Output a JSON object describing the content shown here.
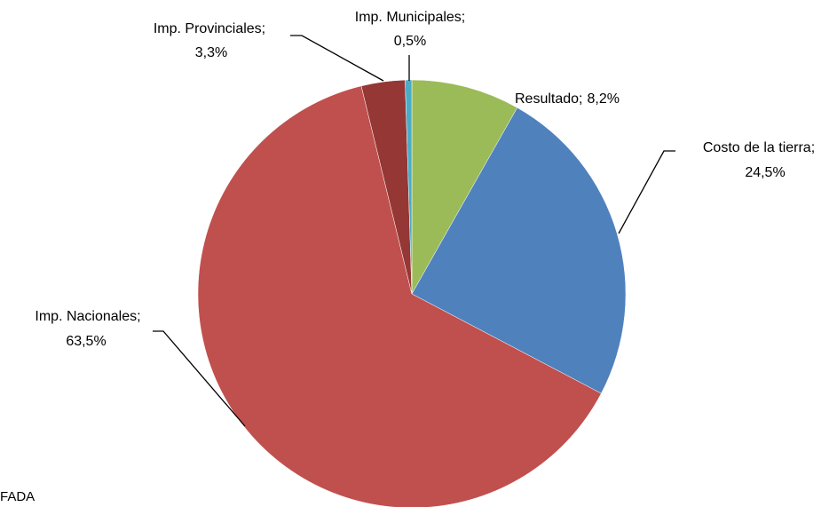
{
  "chart_data": {
    "type": "pie",
    "categories": [
      "Resultado;",
      "Costo de la tierra;",
      "Imp. Nacionales;",
      "Imp. Provinciales;",
      "Imp. Municipales;"
    ],
    "values": [
      8.2,
      24.5,
      63.5,
      3.3,
      0.5
    ],
    "value_labels": [
      "8,2%",
      "24,5%",
      "63,5%",
      "3,3%",
      "0,5%"
    ],
    "colors": [
      "#9bbb59",
      "#4f81bd",
      "#c0504d",
      "#953735",
      "#4bacc6"
    ],
    "source": "FADA"
  }
}
